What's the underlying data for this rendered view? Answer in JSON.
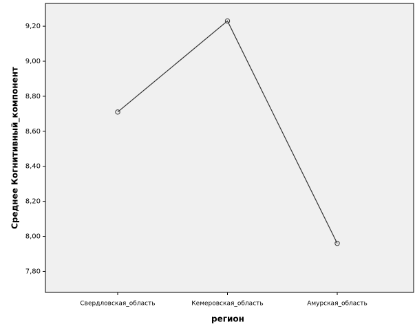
{
  "chart_data": {
    "type": "line",
    "x_label": "регион",
    "y_label": "Среднее Когнитивный_компонент",
    "categories": [
      "Свердловская_область",
      "Кемеровская_область",
      "Амурская_область"
    ],
    "series": [
      {
        "name": "Среднее Когнитивный_компонент",
        "color": "#333333",
        "values": [
          8.71,
          9.23,
          7.96
        ]
      }
    ],
    "ylim": [
      7.68,
      9.33
    ],
    "yticks": [
      {
        "value": 7.8,
        "label": "7,80"
      },
      {
        "value": 8.0,
        "label": "8,00"
      },
      {
        "value": 8.2,
        "label": "8,20"
      },
      {
        "value": 8.4,
        "label": "8,40"
      },
      {
        "value": 8.6,
        "label": "8,60"
      },
      {
        "value": 8.8,
        "label": "8,80"
      },
      {
        "value": 9.0,
        "label": "9,00"
      },
      {
        "value": 9.2,
        "label": "9,20"
      }
    ],
    "grid": false,
    "legend": false
  }
}
